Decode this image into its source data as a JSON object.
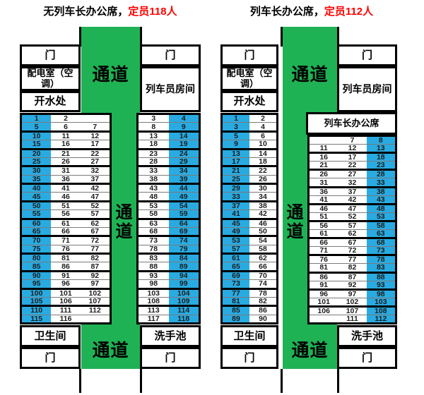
{
  "labels": {
    "door": "门",
    "power_room": "配电室（空调）",
    "water": "开水处",
    "crew_room": "列车员房间",
    "conductor_seat": "列车长办公席",
    "toilet": "卫生间",
    "sink": "洗手池",
    "aisle": "通道"
  },
  "colors": {
    "aisle_green": "#1fb254",
    "seat_blue": "#29abe2",
    "capacity_red": "#ff0000"
  },
  "diagrams": [
    {
      "title_black": "无列车长办公席，",
      "title_red": "定员118人",
      "left_table": {
        "blue_col": 0,
        "blocks": [
          [
            [
              1,
              2,
              null
            ],
            [
              5,
              6,
              7
            ]
          ],
          [
            [
              10,
              11,
              12
            ],
            [
              15,
              16,
              17
            ]
          ],
          [
            [
              20,
              21,
              22
            ],
            [
              25,
              26,
              27
            ]
          ],
          [
            [
              30,
              31,
              32
            ],
            [
              35,
              36,
              37
            ]
          ],
          [
            [
              40,
              41,
              42
            ],
            [
              45,
              46,
              47
            ]
          ],
          [
            [
              50,
              51,
              52
            ],
            [
              55,
              56,
              57
            ]
          ],
          [
            [
              60,
              61,
              62
            ],
            [
              65,
              66,
              67
            ]
          ],
          [
            [
              70,
              71,
              72
            ],
            [
              75,
              76,
              77
            ]
          ],
          [
            [
              80,
              81,
              82
            ],
            [
              85,
              86,
              87
            ]
          ],
          [
            [
              90,
              91,
              92
            ],
            [
              95,
              96,
              97
            ]
          ],
          [
            [
              100,
              101,
              102
            ],
            [
              105,
              106,
              107
            ]
          ],
          [
            [
              110,
              111,
              112
            ],
            [
              115,
              116,
              null
            ]
          ]
        ]
      },
      "right_table": {
        "blue_col": 1,
        "blocks": [
          [
            [
              3,
              4
            ],
            [
              8,
              9
            ]
          ],
          [
            [
              13,
              14
            ],
            [
              18,
              19
            ]
          ],
          [
            [
              23,
              24
            ],
            [
              28,
              29
            ]
          ],
          [
            [
              33,
              34
            ],
            [
              38,
              39
            ]
          ],
          [
            [
              43,
              44
            ],
            [
              48,
              49
            ]
          ],
          [
            [
              53,
              54
            ],
            [
              58,
              59
            ]
          ],
          [
            [
              63,
              64
            ],
            [
              68,
              69
            ]
          ],
          [
            [
              73,
              74
            ],
            [
              78,
              79
            ]
          ],
          [
            [
              83,
              84
            ],
            [
              88,
              89
            ]
          ],
          [
            [
              93,
              94
            ],
            [
              98,
              99
            ]
          ],
          [
            [
              103,
              104
            ],
            [
              108,
              109
            ]
          ],
          [
            [
              113,
              114
            ],
            [
              117,
              118
            ]
          ]
        ]
      }
    },
    {
      "title_black": "列车长办公席，",
      "title_red": "定员112人",
      "left_table": {
        "blue_col": 0,
        "blocks": [
          [
            [
              1,
              2
            ],
            [
              3,
              4
            ]
          ],
          [
            [
              5,
              6
            ],
            [
              9,
              10
            ]
          ],
          [
            [
              13,
              14
            ],
            [
              17,
              18
            ]
          ],
          [
            [
              21,
              22
            ],
            [
              25,
              26
            ]
          ],
          [
            [
              29,
              30
            ],
            [
              33,
              34
            ]
          ],
          [
            [
              37,
              38
            ],
            [
              41,
              42
            ]
          ],
          [
            [
              45,
              46
            ],
            [
              49,
              50
            ]
          ],
          [
            [
              53,
              54
            ],
            [
              57,
              58
            ]
          ],
          [
            [
              61,
              62
            ],
            [
              65,
              66
            ]
          ],
          [
            [
              69,
              70
            ],
            [
              73,
              74
            ]
          ],
          [
            [
              77,
              78
            ],
            [
              81,
              82
            ]
          ],
          [
            [
              85,
              86
            ],
            [
              89,
              90
            ]
          ]
        ]
      },
      "right_table": {
        "blue_col": 2,
        "blocks": [
          [
            [
              null,
              7,
              8
            ],
            [
              11,
              12,
              13
            ]
          ],
          [
            [
              16,
              17,
              18
            ],
            [
              21,
              22,
              23
            ]
          ],
          [
            [
              26,
              27,
              28
            ],
            [
              31,
              32,
              33
            ]
          ],
          [
            [
              36,
              37,
              38
            ],
            [
              41,
              42,
              43
            ]
          ],
          [
            [
              46,
              47,
              48
            ],
            [
              51,
              52,
              53
            ]
          ],
          [
            [
              56,
              57,
              58
            ],
            [
              61,
              62,
              63
            ]
          ],
          [
            [
              66,
              67,
              68
            ],
            [
              71,
              72,
              73
            ]
          ],
          [
            [
              76,
              77,
              78
            ],
            [
              81,
              82,
              83
            ]
          ],
          [
            [
              86,
              87,
              88
            ],
            [
              91,
              92,
              93
            ]
          ],
          [
            [
              96,
              97,
              98
            ],
            [
              101,
              102,
              103
            ]
          ],
          [
            [
              106,
              107,
              108
            ],
            [
              null,
              111,
              112
            ]
          ]
        ]
      }
    }
  ]
}
